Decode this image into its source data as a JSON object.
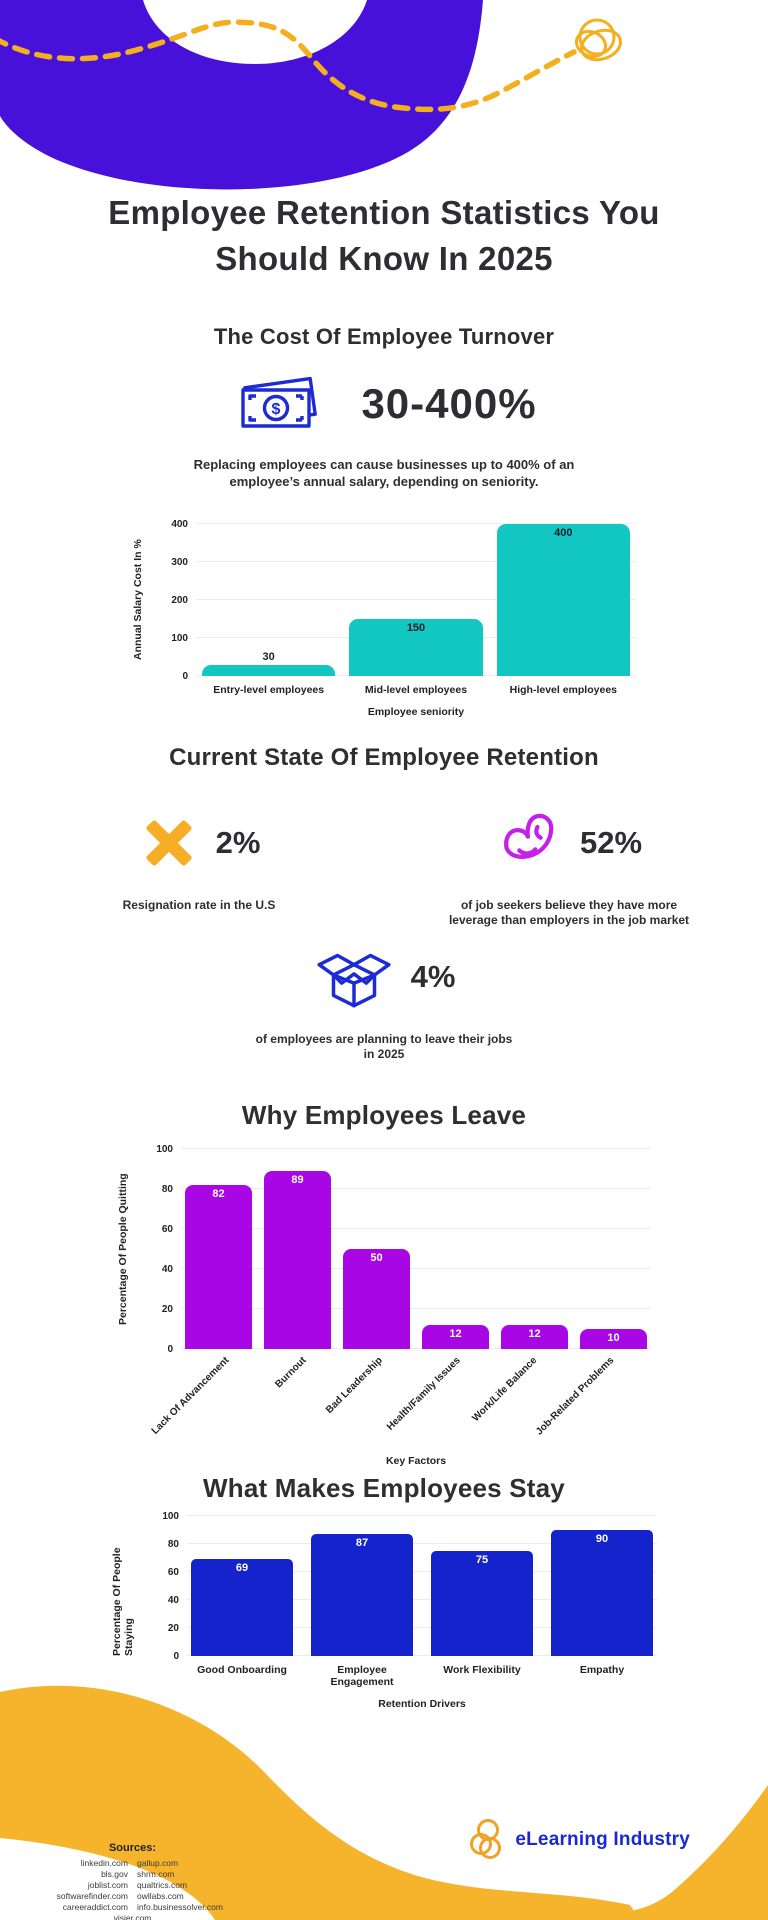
{
  "header": {
    "wave_color": "#4711d9",
    "dash_color": "#f4af1f",
    "title": "Employee Retention Statistics You\nShould Know In 2025"
  },
  "section_turnover": {
    "heading": "The Cost Of Employee Turnover",
    "icon": "banknote-icon",
    "icon_color": "#1c2bd4",
    "stat_value": "30-400%",
    "description": "Replacing employees can cause businesses up to 400% of an\nemployee’s annual salary, depending on seniority."
  },
  "section_current": {
    "heading": "Current State Of Employee Retention",
    "stats": [
      {
        "icon": "x-mark-icon",
        "color": "#f6ae27",
        "value": "2%",
        "caption": "Resignation rate in the U.S"
      },
      {
        "icon": "flexed-bicep-icon",
        "color": "#c520ea",
        "value": "52%",
        "caption": "of job seekers believe they have more\nleverage than employers in the job market"
      },
      {
        "icon": "open-box-icon",
        "color": "#1c2bd4",
        "value": "4%",
        "caption": "of employees are planning to leave their jobs\nin 2025"
      }
    ]
  },
  "section_leave": {
    "heading": "Why Employees Leave"
  },
  "section_stay": {
    "heading": "What Makes Employees Stay"
  },
  "chart_data": [
    {
      "type": "bar",
      "categories": [
        "Entry-level employees",
        "Mid-level employees",
        "High-level employees"
      ],
      "values": [
        30,
        150,
        400
      ],
      "title": "",
      "xlabel": "Employee seniority",
      "ylabel": "Annual Salary Cost In %",
      "ylim": [
        0,
        400
      ],
      "yticks": [
        0,
        100,
        200,
        300,
        400
      ],
      "grid": true,
      "legend": false,
      "bar_color": "#12c7c1",
      "value_label_color": "#17202a"
    },
    {
      "type": "bar",
      "categories": [
        "Lack Of Advancement",
        "Burnout",
        "Bad Leadership",
        "Health/Family Issues",
        "Work/Life Balance",
        "Job-Related Problems"
      ],
      "values": [
        82,
        89,
        50,
        12,
        12,
        10
      ],
      "title": "Why Employees Leave",
      "xlabel": "Key Factors",
      "ylabel": "Percentage Of People Quitting",
      "ylim": [
        0,
        100
      ],
      "yticks": [
        0,
        20,
        40,
        60,
        80,
        100
      ],
      "grid": true,
      "legend": false,
      "bar_color": "#a906e5",
      "value_label_color": "#ffffff"
    },
    {
      "type": "bar",
      "categories": [
        "Good Onboarding",
        "Employee Engagement",
        "Work Flexibility",
        "Empathy"
      ],
      "values": [
        69,
        87,
        75,
        90
      ],
      "title": "What Makes Employees Stay",
      "xlabel": "Retention Drivers",
      "ylabel": "Percentage Of People Staying",
      "ylim": [
        0,
        100
      ],
      "yticks": [
        0,
        20,
        40,
        60,
        80,
        100
      ],
      "grid": true,
      "legend": false,
      "bar_color": "#1423cb",
      "value_label_color": "#ffffff"
    }
  ],
  "footer": {
    "wave_color": "#f6b42c",
    "sources_label": "Sources:",
    "sources_col1": [
      "linkedin.com",
      "bls.gov",
      "joblist.com",
      "softwarefinder.com",
      "careeraddict.com",
      "visier.com"
    ],
    "sources_col2": [
      "gallup.com",
      "shrm.com",
      "qualtrics.com",
      "owllabs.com",
      "info.businessolver.com"
    ],
    "logo_icon": "elearning-rings-icon",
    "logo_icon_color": "#f0a226",
    "logo_text": "eLearning Industry",
    "logo_text_color": "#1b28d0"
  }
}
